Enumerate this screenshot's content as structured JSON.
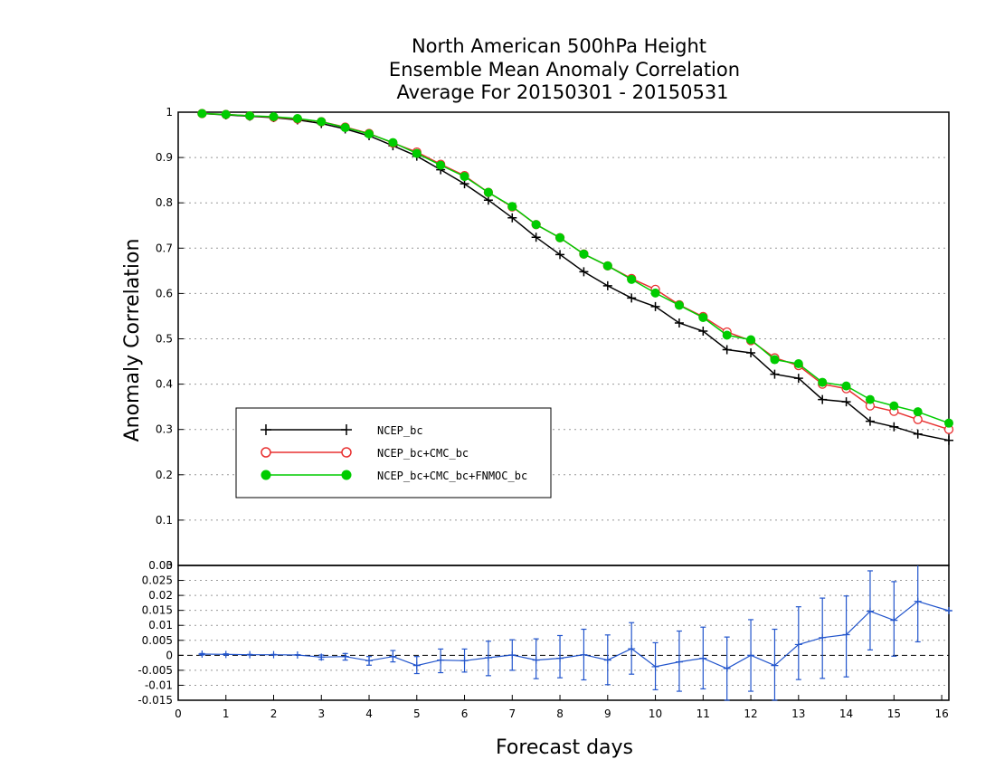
{
  "title": {
    "line1": "North American 500hPa Height",
    "line2": "Ensemble Mean Anomaly Correlation",
    "line3": "Average For 20150301 - 20150531"
  },
  "chart_data": [
    {
      "type": "line",
      "ylabel": "Anomaly Correlation",
      "xlim": [
        0,
        16.15
      ],
      "ylim": [
        0,
        1
      ],
      "yticks": [
        "0",
        "0.1",
        "0.2",
        "0.3",
        "0.4",
        "0.5",
        "0.6",
        "0.7",
        "0.8",
        "0.9",
        "1"
      ],
      "grid": true,
      "legend_position": "left-middle",
      "x": [
        0.5,
        1,
        1.5,
        2,
        2.5,
        3,
        3.5,
        4,
        4.5,
        5,
        5.5,
        6,
        6.5,
        7,
        7.5,
        8,
        8.5,
        9,
        9.5,
        10,
        10.5,
        11,
        11.5,
        12,
        12.5,
        13,
        13.5,
        14,
        14.5,
        15,
        15.5,
        16.15
      ],
      "series": [
        {
          "name": "NCEP_bc",
          "color": "#000000",
          "marker": "plus",
          "values": [
            0.997,
            0.994,
            0.991,
            0.988,
            0.983,
            0.975,
            0.963,
            0.948,
            0.926,
            0.903,
            0.873,
            0.842,
            0.806,
            0.767,
            0.724,
            0.686,
            0.648,
            0.617,
            0.59,
            0.571,
            0.535,
            0.517,
            0.476,
            0.469,
            0.422,
            0.413,
            0.366,
            0.361,
            0.318,
            0.306,
            0.29,
            0.276
          ]
        },
        {
          "name": "NCEP_bc+CMC_bc",
          "color": "#e83030",
          "marker": "open-circle",
          "values": [
            0.997,
            0.995,
            0.992,
            0.989,
            0.985,
            0.979,
            0.967,
            0.953,
            0.932,
            0.912,
            0.885,
            0.86,
            0.823,
            0.791,
            0.752,
            0.723,
            0.687,
            0.661,
            0.633,
            0.609,
            0.575,
            0.549,
            0.515,
            0.496,
            0.458,
            0.441,
            0.4,
            0.39,
            0.352,
            0.34,
            0.322,
            0.3
          ]
        },
        {
          "name": "NCEP_bc+CMC_bc+FNMOC_bc",
          "color": "#00cc00",
          "marker": "filled-circle",
          "values": [
            0.997,
            0.995,
            0.992,
            0.99,
            0.986,
            0.979,
            0.966,
            0.952,
            0.933,
            0.909,
            0.883,
            0.858,
            0.823,
            0.792,
            0.752,
            0.723,
            0.687,
            0.661,
            0.631,
            0.601,
            0.574,
            0.547,
            0.508,
            0.498,
            0.454,
            0.445,
            0.404,
            0.396,
            0.366,
            0.352,
            0.339,
            0.314
          ]
        }
      ]
    },
    {
      "type": "line",
      "xlabel": "Forecast days",
      "xlim": [
        0,
        16.15
      ],
      "ylim": [
        -0.015,
        0.03
      ],
      "xticks": [
        "0",
        "1",
        "2",
        "3",
        "4",
        "5",
        "6",
        "7",
        "8",
        "9",
        "10",
        "11",
        "12",
        "13",
        "14",
        "15",
        "16"
      ],
      "yticks": [
        "-0.015",
        "-0.01",
        "-0.005",
        "0",
        "0.005",
        "0.01",
        "0.015",
        "0.02",
        "0.025",
        "0.03"
      ],
      "grid": true,
      "series": [
        {
          "color": "#2255cc",
          "marker": "plus",
          "error_bars": true,
          "x": [
            0.5,
            1,
            1.5,
            2,
            2.5,
            3,
            3.5,
            4,
            4.5,
            5,
            5.5,
            6,
            6.5,
            7,
            7.5,
            8,
            8.5,
            9,
            9.5,
            10,
            10.5,
            11,
            11.5,
            12,
            12.5,
            13,
            13.5,
            14,
            14.5,
            15,
            15.5,
            16.15
          ],
          "values": [
            0.0004,
            0.0003,
            0.0002,
            0.0002,
            0.0001,
            -0.0006,
            -0.0004,
            -0.0018,
            -0.0004,
            -0.0034,
            -0.0016,
            -0.0018,
            -0.0008,
            0.0001,
            -0.0016,
            -0.001,
            0.0002,
            -0.0016,
            0.0022,
            -0.0038,
            -0.0022,
            -0.001,
            -0.0044,
            0,
            -0.0034,
            0.0036,
            0.0059,
            0.0069,
            0.0147,
            0.0117,
            0.018,
            0.0149
          ],
          "error_low": [
            0.0001,
            0.0001,
            0.0001,
            0.0001,
            0.0001,
            -0.0014,
            -0.0016,
            -0.0033,
            -0.0022,
            -0.0061,
            -0.0058,
            -0.0056,
            -0.0068,
            -0.005,
            -0.0078,
            -0.0075,
            -0.0082,
            -0.0098,
            -0.0063,
            -0.0115,
            -0.012,
            -0.0112,
            -0.015,
            -0.012,
            -0.015,
            -0.0081,
            -0.0077,
            -0.0072,
            0.0018,
            -0.0003,
            0.0045,
            0.0149
          ],
          "error_high": [
            0.0006,
            0.0005,
            0.0003,
            0.0003,
            0.0002,
            0.0001,
            0.0006,
            -0.0004,
            0.0016,
            -0.0004,
            0.0021,
            0.0021,
            0.0047,
            0.0052,
            0.0055,
            0.0066,
            0.0087,
            0.0068,
            0.0109,
            0.0042,
            0.0081,
            0.0094,
            0.0061,
            0.0119,
            0.0087,
            0.0162,
            0.0191,
            0.0198,
            0.0282,
            0.0246,
            0.031,
            0.0149
          ]
        }
      ]
    }
  ]
}
